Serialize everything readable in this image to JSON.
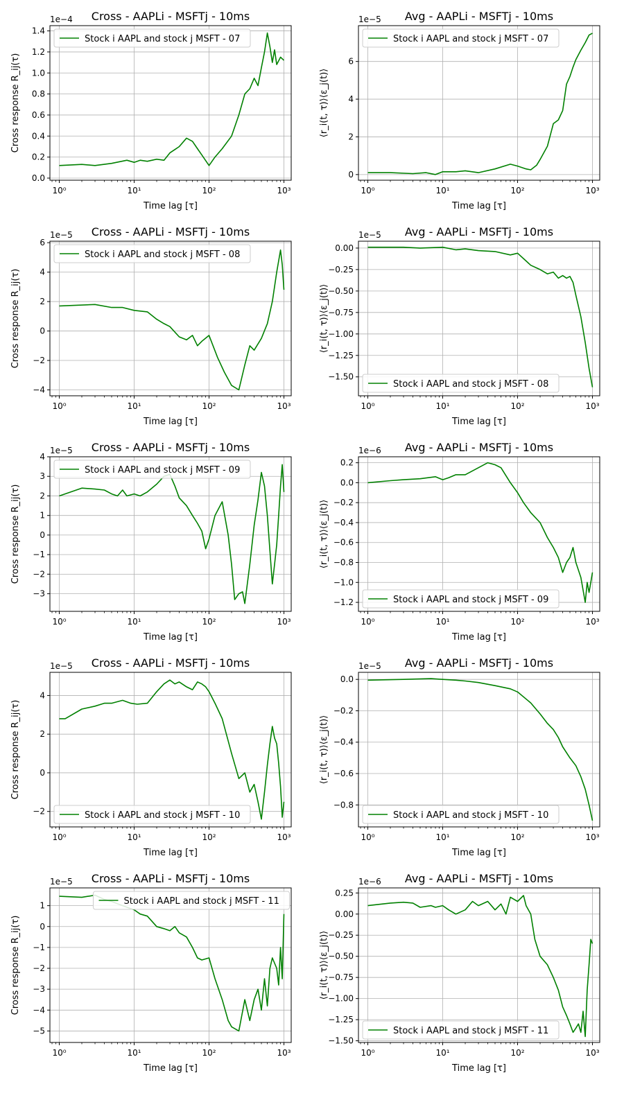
{
  "figure": {
    "title_cross": "Cross - AAPLi - MSFTj - 10ms",
    "title_avg": "Avg - AAPLi - MSFTj - 10ms",
    "xlabel": "Time lag [τ]",
    "ylabel_cross": "Cross response R_ij(τ)",
    "ylabel_avg": "⟨r_i(t, τ)⟩⟨ε_j(t)⟩"
  },
  "chart_data": [
    {
      "type": "line",
      "title": "Cross - AAPLi - MSFTj - 10ms",
      "xlabel": "Time lag [τ]",
      "ylabel": "Cross response R_ij(τ)",
      "xscale": "log",
      "xlim": [
        0.75,
        1250
      ],
      "xticks": [
        "10⁰",
        "10¹",
        "10²",
        "10³"
      ],
      "ylim": [
        -0.02,
        1.45
      ],
      "offset": "1e−4",
      "yticks": [
        0.0,
        0.2,
        0.4,
        0.6,
        0.8,
        1.0,
        1.2,
        1.4
      ],
      "ydec": 1,
      "legend": "upper-left",
      "grid": true,
      "color": "#008000",
      "series": [
        {
          "name": "Stock i AAPL and stock j MSFT - 07",
          "x": [
            1,
            2,
            3,
            5,
            8,
            10,
            12,
            15,
            20,
            25,
            30,
            40,
            50,
            60,
            70,
            80,
            100,
            120,
            150,
            200,
            250,
            300,
            350,
            400,
            450,
            500,
            550,
            600,
            650,
            700,
            750,
            800,
            900,
            1000
          ],
          "y": [
            0.12,
            0.13,
            0.12,
            0.14,
            0.17,
            0.15,
            0.17,
            0.16,
            0.18,
            0.17,
            0.24,
            0.3,
            0.38,
            0.35,
            0.28,
            0.22,
            0.12,
            0.2,
            0.28,
            0.4,
            0.6,
            0.8,
            0.85,
            0.95,
            0.88,
            1.05,
            1.2,
            1.38,
            1.25,
            1.1,
            1.22,
            1.08,
            1.15,
            1.12
          ]
        }
      ]
    },
    {
      "type": "line",
      "title": "Avg - AAPLi - MSFTj - 10ms",
      "xlabel": "Time lag [τ]",
      "ylabel": "⟨r_i(t, τ)⟩⟨ε_j(t)⟩",
      "xscale": "log",
      "xlim": [
        0.75,
        1250
      ],
      "xticks": [
        "10⁰",
        "10¹",
        "10²",
        "10³"
      ],
      "ylim": [
        -0.3,
        7.9
      ],
      "offset": "1e−5",
      "yticks": [
        0,
        2,
        4,
        6
      ],
      "ydec": 0,
      "legend": "upper-left",
      "grid": true,
      "color": "#008000",
      "series": [
        {
          "name": "Stock i AAPL and stock j MSFT - 07",
          "x": [
            1,
            2,
            4,
            6,
            8,
            10,
            15,
            20,
            30,
            50,
            80,
            100,
            130,
            150,
            180,
            200,
            250,
            300,
            350,
            400,
            450,
            500,
            550,
            600,
            700,
            800,
            900,
            1000
          ],
          "y": [
            0.1,
            0.1,
            0.05,
            0.1,
            0.0,
            0.15,
            0.15,
            0.2,
            0.1,
            0.3,
            0.55,
            0.45,
            0.3,
            0.25,
            0.5,
            0.8,
            1.5,
            2.7,
            2.9,
            3.4,
            4.8,
            5.2,
            5.7,
            6.1,
            6.6,
            7.0,
            7.4,
            7.5
          ]
        }
      ]
    },
    {
      "type": "line",
      "title": "Cross - AAPLi - MSFTj - 10ms",
      "xlabel": "Time lag [τ]",
      "ylabel": "Cross response R_ij(τ)",
      "xscale": "log",
      "xlim": [
        0.75,
        1250
      ],
      "xticks": [
        "10⁰",
        "10¹",
        "10²",
        "10³"
      ],
      "ylim": [
        -4.4,
        6.1
      ],
      "offset": "1e−5",
      "yticks": [
        -4,
        -2,
        0,
        2,
        4,
        6
      ],
      "ydec": 0,
      "legend": "upper-left",
      "grid": true,
      "color": "#008000",
      "series": [
        {
          "name": "Stock i AAPL and stock j MSFT - 08",
          "x": [
            1,
            3,
            5,
            7,
            10,
            15,
            20,
            25,
            30,
            40,
            50,
            60,
            70,
            80,
            100,
            130,
            160,
            200,
            250,
            300,
            350,
            400,
            500,
            600,
            700,
            800,
            900,
            950,
            1000
          ],
          "y": [
            1.7,
            1.8,
            1.6,
            1.6,
            1.4,
            1.3,
            0.8,
            0.5,
            0.3,
            -0.4,
            -0.6,
            -0.3,
            -1.0,
            -0.7,
            -0.3,
            -1.8,
            -2.8,
            -3.7,
            -4.0,
            -2.3,
            -1.0,
            -1.3,
            -0.5,
            0.5,
            2.0,
            4.0,
            5.5,
            4.5,
            2.8
          ]
        }
      ]
    },
    {
      "type": "line",
      "title": "Avg - AAPLi - MSFTj - 10ms",
      "xlabel": "Time lag [τ]",
      "ylabel": "⟨r_i(t, τ)⟩⟨ε_j(t)⟩",
      "xscale": "log",
      "xlim": [
        0.75,
        1250
      ],
      "xticks": [
        "10⁰",
        "10¹",
        "10²",
        "10³"
      ],
      "ylim": [
        -1.72,
        0.08
      ],
      "offset": "1e−5",
      "yticks": [
        0.0,
        -0.25,
        -0.5,
        -0.75,
        -1.0,
        -1.25,
        -1.5
      ],
      "ydec": 2,
      "legend": "lower-left",
      "grid": true,
      "color": "#008000",
      "series": [
        {
          "name": "Stock i AAPL and stock j MSFT - 08",
          "x": [
            1,
            3,
            5,
            10,
            15,
            20,
            30,
            50,
            80,
            100,
            130,
            150,
            200,
            250,
            300,
            350,
            400,
            450,
            500,
            550,
            600,
            700,
            800,
            900,
            1000
          ],
          "y": [
            0.01,
            0.01,
            0.0,
            0.01,
            -0.02,
            -0.01,
            -0.03,
            -0.04,
            -0.08,
            -0.06,
            -0.15,
            -0.2,
            -0.25,
            -0.3,
            -0.28,
            -0.35,
            -0.32,
            -0.35,
            -0.33,
            -0.4,
            -0.55,
            -0.8,
            -1.1,
            -1.4,
            -1.62
          ]
        }
      ]
    },
    {
      "type": "line",
      "title": "Cross - AAPLi - MSFTj - 10ms",
      "xlabel": "Time lag [τ]",
      "ylabel": "Cross response R_ij(τ)",
      "xscale": "log",
      "xlim": [
        0.75,
        1250
      ],
      "xticks": [
        "10⁰",
        "10¹",
        "10²",
        "10³"
      ],
      "ylim": [
        -3.9,
        4.0
      ],
      "offset": "1e−5",
      "yticks": [
        -3,
        -2,
        -1,
        0,
        1,
        2,
        3,
        4
      ],
      "ydec": 0,
      "legend": "upper-left",
      "grid": true,
      "color": "#008000",
      "series": [
        {
          "name": "Stock i AAPL and stock j MSFT - 09",
          "x": [
            1,
            2,
            3,
            4,
            5,
            6,
            7,
            8,
            10,
            12,
            15,
            20,
            25,
            30,
            35,
            40,
            50,
            60,
            70,
            80,
            90,
            100,
            120,
            150,
            180,
            200,
            220,
            250,
            280,
            300,
            350,
            400,
            450,
            500,
            550,
            600,
            650,
            700,
            750,
            800,
            850,
            900,
            950,
            1000
          ],
          "y": [
            2.0,
            2.4,
            2.35,
            2.3,
            2.1,
            2.0,
            2.3,
            2.0,
            2.1,
            2.0,
            2.2,
            2.6,
            3.0,
            3.1,
            2.5,
            1.9,
            1.5,
            1.0,
            0.6,
            0.2,
            -0.7,
            -0.2,
            1.0,
            1.7,
            0.0,
            -1.5,
            -3.3,
            -3.0,
            -2.9,
            -3.5,
            -1.5,
            0.5,
            1.8,
            3.2,
            2.5,
            1.0,
            -0.8,
            -2.5,
            -1.5,
            -0.5,
            1.0,
            2.5,
            3.6,
            2.2
          ]
        }
      ]
    },
    {
      "type": "line",
      "title": "Avg - AAPLi - MSFTj - 10ms",
      "xlabel": "Time lag [τ]",
      "ylabel": "⟨r_i(t, τ)⟩⟨ε_j(t)⟩",
      "xscale": "log",
      "xlim": [
        0.75,
        1250
      ],
      "xticks": [
        "10⁰",
        "10¹",
        "10²",
        "10³"
      ],
      "ylim": [
        -1.29,
        0.26
      ],
      "offset": "1e−6",
      "yticks": [
        0.2,
        0.0,
        -0.2,
        -0.4,
        -0.6,
        -0.8,
        -1.0,
        -1.2
      ],
      "ydec": 1,
      "legend": "lower-left",
      "grid": true,
      "color": "#008000",
      "series": [
        {
          "name": "Stock i AAPL and stock j MSFT - 09",
          "x": [
            1,
            2,
            3,
            5,
            8,
            10,
            12,
            15,
            20,
            30,
            40,
            50,
            60,
            80,
            100,
            120,
            150,
            200,
            250,
            300,
            350,
            400,
            450,
            500,
            550,
            600,
            700,
            800,
            850,
            900,
            950,
            1000
          ],
          "y": [
            0.0,
            0.02,
            0.03,
            0.04,
            0.06,
            0.03,
            0.05,
            0.08,
            0.08,
            0.15,
            0.2,
            0.18,
            0.15,
            0.0,
            -0.1,
            -0.2,
            -0.3,
            -0.4,
            -0.55,
            -0.65,
            -0.75,
            -0.9,
            -0.8,
            -0.75,
            -0.65,
            -0.8,
            -0.95,
            -1.2,
            -1.0,
            -1.1,
            -1.0,
            -0.9
          ]
        }
      ]
    },
    {
      "type": "line",
      "title": "Cross - AAPLi - MSFTj - 10ms",
      "xlabel": "Time lag [τ]",
      "ylabel": "Cross response R_ij(τ)",
      "xscale": "log",
      "xlim": [
        0.75,
        1250
      ],
      "xticks": [
        "10⁰",
        "10¹",
        "10²",
        "10³"
      ],
      "ylim": [
        -2.8,
        5.2
      ],
      "offset": "1e−5",
      "yticks": [
        -2,
        0,
        2,
        4
      ],
      "ydec": 0,
      "legend": "lower-left",
      "grid": true,
      "color": "#008000",
      "series": [
        {
          "name": "Stock i AAPL and stock j MSFT - 10",
          "x": [
            1,
            1.2,
            2,
            3,
            4,
            5,
            7,
            9,
            11,
            15,
            20,
            25,
            30,
            35,
            40,
            50,
            60,
            70,
            80,
            90,
            100,
            120,
            150,
            200,
            250,
            300,
            350,
            400,
            450,
            500,
            550,
            600,
            650,
            700,
            750,
            800,
            850,
            900,
            950,
            1000
          ],
          "y": [
            2.8,
            2.8,
            3.3,
            3.45,
            3.6,
            3.6,
            3.75,
            3.6,
            3.55,
            3.6,
            4.2,
            4.6,
            4.8,
            4.6,
            4.7,
            4.45,
            4.3,
            4.7,
            4.6,
            4.45,
            4.2,
            3.6,
            2.8,
            1.0,
            -0.3,
            0.0,
            -1.0,
            -0.6,
            -1.5,
            -2.4,
            -1.0,
            0.4,
            1.5,
            2.4,
            1.8,
            1.5,
            0.5,
            -0.7,
            -2.3,
            -1.5
          ]
        }
      ]
    },
    {
      "type": "line",
      "title": "Avg - AAPLi - MSFTj - 10ms",
      "xlabel": "Time lag [τ]",
      "ylabel": "⟨r_i(t, τ)⟩⟨ε_j(t)⟩",
      "xscale": "log",
      "xlim": [
        0.75,
        1250
      ],
      "xticks": [
        "10⁰",
        "10¹",
        "10²",
        "10³"
      ],
      "ylim": [
        -0.94,
        0.045
      ],
      "offset": "1e−5",
      "yticks": [
        0.0,
        -0.2,
        -0.4,
        -0.6,
        -0.8
      ],
      "ydec": 1,
      "legend": "lower-left",
      "grid": true,
      "color": "#008000",
      "series": [
        {
          "name": "Stock i AAPL and stock j MSFT - 10",
          "x": [
            1,
            3,
            7,
            10,
            15,
            20,
            30,
            50,
            80,
            100,
            150,
            200,
            250,
            300,
            350,
            400,
            500,
            600,
            700,
            800,
            900,
            1000
          ],
          "y": [
            -0.005,
            0.0,
            0.005,
            0.0,
            -0.005,
            -0.01,
            -0.02,
            -0.04,
            -0.06,
            -0.08,
            -0.15,
            -0.22,
            -0.28,
            -0.32,
            -0.37,
            -0.43,
            -0.5,
            -0.55,
            -0.62,
            -0.7,
            -0.8,
            -0.9
          ]
        }
      ]
    },
    {
      "type": "line",
      "title": "Cross - AAPLi - MSFTj - 10ms",
      "xlabel": "Time lag [τ]",
      "ylabel": "Cross response R_ij(τ)",
      "xscale": "log",
      "xlim": [
        0.75,
        1250
      ],
      "xticks": [
        "10⁰",
        "10¹",
        "10²",
        "10³"
      ],
      "ylim": [
        -5.55,
        1.85
      ],
      "offset": "1e−5",
      "yticks": [
        -5,
        -4,
        -3,
        -2,
        -1,
        0,
        1
      ],
      "ydec": 0,
      "legend": "upper-center",
      "grid": true,
      "color": "#008000",
      "series": [
        {
          "name": "Stock i AAPL and stock j MSFT - 11",
          "x": [
            1,
            2,
            3,
            4,
            5,
            7,
            10,
            12,
            15,
            20,
            25,
            30,
            35,
            40,
            50,
            60,
            70,
            80,
            100,
            120,
            150,
            180,
            200,
            250,
            300,
            350,
            400,
            450,
            500,
            550,
            600,
            650,
            700,
            800,
            850,
            900,
            950,
            1000
          ],
          "y": [
            1.45,
            1.4,
            1.5,
            1.3,
            1.2,
            1.0,
            0.8,
            0.6,
            0.5,
            0.0,
            -0.1,
            -0.2,
            0.0,
            -0.3,
            -0.5,
            -1.0,
            -1.5,
            -1.6,
            -1.5,
            -2.5,
            -3.5,
            -4.5,
            -4.8,
            -5.0,
            -3.5,
            -4.5,
            -3.5,
            -3.0,
            -4.0,
            -2.5,
            -3.8,
            -2.0,
            -1.5,
            -2.0,
            -2.8,
            -1.0,
            -2.5,
            0.6
          ]
        }
      ]
    },
    {
      "type": "line",
      "title": "Avg - AAPLi - MSFTj - 10ms",
      "xlabel": "Time lag [τ]",
      "ylabel": "⟨r_i(t, τ)⟩⟨ε_j(t)⟩",
      "xscale": "log",
      "xlim": [
        0.75,
        1250
      ],
      "xticks": [
        "10⁰",
        "10¹",
        "10²",
        "10³"
      ],
      "ylim": [
        -1.52,
        0.31
      ],
      "offset": "1e−6",
      "yticks": [
        0.25,
        0.0,
        -0.25,
        -0.5,
        -0.75,
        -1.0,
        -1.25,
        -1.5
      ],
      "ydec": 2,
      "legend": "lower-left",
      "grid": true,
      "color": "#008000",
      "series": [
        {
          "name": "Stock i AAPL and stock j MSFT - 11",
          "x": [
            1,
            2,
            3,
            4,
            5,
            7,
            8,
            10,
            12,
            15,
            20,
            25,
            30,
            40,
            50,
            60,
            70,
            80,
            100,
            120,
            130,
            150,
            170,
            200,
            250,
            300,
            350,
            400,
            450,
            500,
            550,
            600,
            650,
            700,
            750,
            800,
            850,
            900,
            950,
            1000
          ],
          "y": [
            0.1,
            0.13,
            0.14,
            0.13,
            0.08,
            0.1,
            0.08,
            0.1,
            0.05,
            0.0,
            0.05,
            0.15,
            0.1,
            0.15,
            0.05,
            0.12,
            0.0,
            0.2,
            0.15,
            0.22,
            0.1,
            0.0,
            -0.3,
            -0.5,
            -0.6,
            -0.75,
            -0.9,
            -1.1,
            -1.2,
            -1.3,
            -1.4,
            -1.35,
            -1.3,
            -1.4,
            -1.15,
            -1.45,
            -0.9,
            -0.6,
            -0.3,
            -0.35
          ]
        }
      ]
    }
  ]
}
